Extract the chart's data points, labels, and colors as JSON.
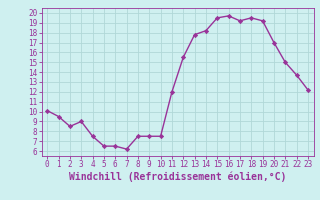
{
  "x": [
    0,
    1,
    2,
    3,
    4,
    5,
    6,
    7,
    8,
    9,
    10,
    11,
    12,
    13,
    14,
    15,
    16,
    17,
    18,
    19,
    20,
    21,
    22,
    23
  ],
  "y": [
    10.1,
    9.5,
    8.5,
    9.0,
    7.5,
    6.5,
    6.5,
    6.2,
    7.5,
    7.5,
    7.5,
    12.0,
    15.5,
    17.8,
    18.2,
    19.5,
    19.7,
    19.2,
    19.5,
    19.2,
    17.0,
    15.0,
    13.7,
    12.2
  ],
  "line_color": "#993399",
  "marker": "D",
  "marker_size": 2.2,
  "linewidth": 1.0,
  "xlabel": "Windchill (Refroidissement éolien,°C)",
  "ylabel": "",
  "xlim": [
    -0.5,
    23.5
  ],
  "ylim": [
    5.5,
    20.5
  ],
  "yticks": [
    6,
    7,
    8,
    9,
    10,
    11,
    12,
    13,
    14,
    15,
    16,
    17,
    18,
    19,
    20
  ],
  "xticks": [
    0,
    1,
    2,
    3,
    4,
    5,
    6,
    7,
    8,
    9,
    10,
    11,
    12,
    13,
    14,
    15,
    16,
    17,
    18,
    19,
    20,
    21,
    22,
    23
  ],
  "bg_color": "#cff0f0",
  "grid_color": "#b0d8d8",
  "tick_color": "#993399",
  "label_color": "#993399",
  "tick_fontsize": 5.5,
  "xlabel_fontsize": 7.0
}
